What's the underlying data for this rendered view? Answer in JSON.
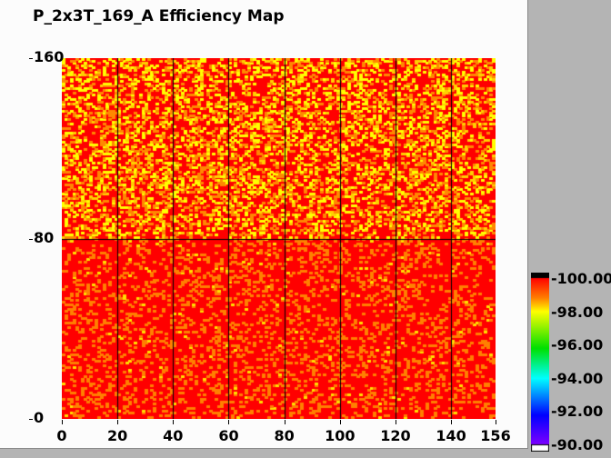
{
  "title": "P_2x3T_169_A Efficiency Map",
  "chart_data": {
    "type": "heatmap",
    "title": "P_2x3T_169_A Efficiency Map",
    "xlabel": "",
    "ylabel": "",
    "xlim": [
      0,
      156
    ],
    "ylim": [
      0,
      160
    ],
    "x_ticks": [
      "0",
      "20",
      "40",
      "60",
      "80",
      "100",
      "120",
      "140",
      "156"
    ],
    "y_ticks": [
      "0",
      "80",
      "160"
    ],
    "grid": true,
    "colorbar": {
      "range": [
        90,
        100
      ],
      "tick_labels": [
        "100.00",
        "98.00",
        "96.00",
        "94.00",
        "92.00",
        "90.00"
      ],
      "colors": [
        "#000000",
        "#ff0000",
        "#ff8000",
        "#ffff00",
        "#00e000",
        "#00ffff",
        "#0000ff",
        "#8000ff",
        "#ffffff"
      ]
    },
    "values_summary": {
      "dominant_value": 100,
      "common_range": [
        98,
        100
      ]
    }
  }
}
